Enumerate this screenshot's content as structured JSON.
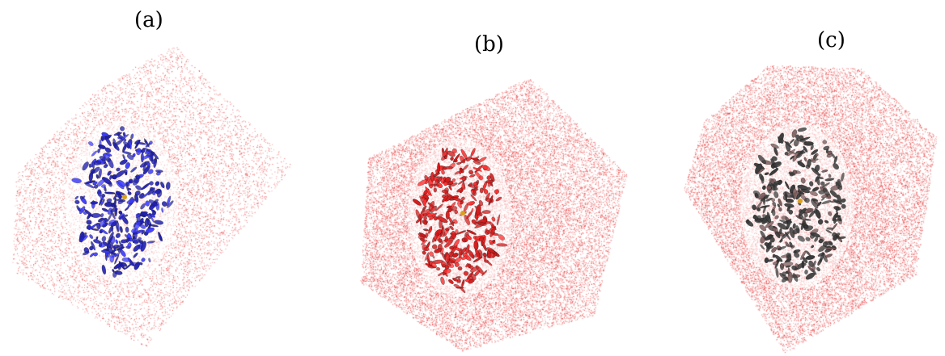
{
  "panels": [
    {
      "id": "a",
      "label": "(a)",
      "protein_color": "#1f1fb0",
      "protein_accent": "#3a3aff",
      "cloud_color": "#e31a1c"
    },
    {
      "id": "b",
      "label": "(b)",
      "protein_color": "#d41a1a",
      "protein_accent": "#ff3030",
      "cloud_color": "#e31a1c"
    },
    {
      "id": "c",
      "label": "(c)",
      "protein_color": "#3a3a3a",
      "protein_accent": "#7a5a5a",
      "cloud_color": "#e31a1c"
    }
  ]
}
